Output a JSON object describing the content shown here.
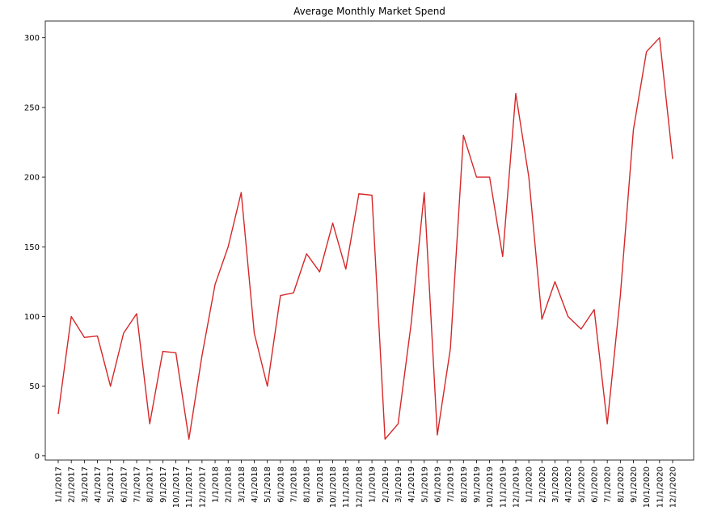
{
  "chart_data": {
    "type": "line",
    "title": "Average Monthly Market Spend",
    "xlabel": "",
    "ylabel": "",
    "ylim": [
      -3,
      312
    ],
    "yticks": [
      0,
      50,
      100,
      150,
      200,
      250,
      300
    ],
    "grid": false,
    "line_color": "#d62728",
    "x": [
      "1/1/2017",
      "2/1/2017",
      "3/1/2017",
      "4/1/2017",
      "5/1/2017",
      "6/1/2017",
      "7/1/2017",
      "8/1/2017",
      "9/1/2017",
      "10/1/2017",
      "11/1/2017",
      "12/1/2017",
      "1/1/2018",
      "2/1/2018",
      "3/1/2018",
      "4/1/2018",
      "5/1/2018",
      "6/1/2018",
      "7/1/2018",
      "8/1/2018",
      "9/1/2018",
      "10/1/2018",
      "11/1/2018",
      "12/1/2018",
      "1/1/2019",
      "2/1/2019",
      "3/1/2019",
      "4/1/2019",
      "5/1/2019",
      "6/1/2019",
      "7/1/2019",
      "8/1/2019",
      "9/1/2019",
      "10/1/2019",
      "11/1/2019",
      "12/1/2019",
      "1/1/2020",
      "2/1/2020",
      "3/1/2020",
      "4/1/2020",
      "5/1/2020",
      "6/1/2020",
      "7/1/2020",
      "8/1/2020",
      "9/1/2020",
      "10/1/2020",
      "11/1/2020",
      "12/1/2020"
    ],
    "values": [
      30,
      100,
      85,
      86,
      50,
      88,
      102,
      23,
      75,
      74,
      12,
      72,
      123,
      150,
      189,
      88,
      50,
      115,
      117,
      145,
      132,
      167,
      134,
      188,
      187,
      12,
      23,
      95,
      189,
      15,
      77,
      230,
      200,
      200,
      143,
      260,
      200,
      98,
      125,
      100,
      91,
      105,
      23,
      115,
      234,
      290,
      300,
      213
    ]
  }
}
